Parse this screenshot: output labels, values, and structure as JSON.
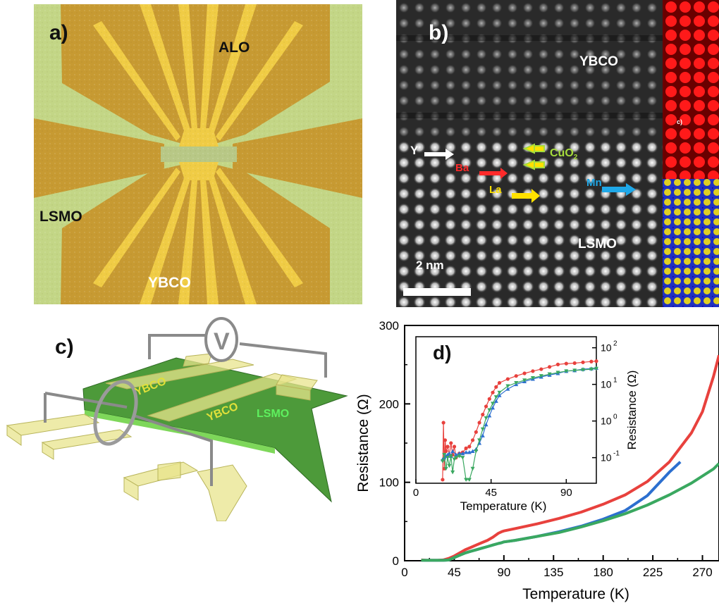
{
  "panel_a": {
    "label": "a)",
    "materials": {
      "top": "ALO",
      "left": "LSMO",
      "bottom": "YBCO"
    },
    "colors": {
      "substrate": "#c3d686",
      "gold": "#c79a32",
      "ybco": "#f0cc45",
      "frame": "#a9bf78"
    }
  },
  "panel_b": {
    "label": "b)",
    "layer_top": "YBCO",
    "layer_bottom": "LSMO",
    "atoms": {
      "y": "Y",
      "ba": "Ba",
      "la": "La",
      "mn": "Mn",
      "cuo2": "CuO",
      "cuo2_sub": "2"
    },
    "scale_bar": "2 nm",
    "eds_label": "c)",
    "colors": {
      "y": "#ffffff",
      "ba": "#ff2a2a",
      "la": "#ffe100",
      "mn": "#1fa8e8",
      "cuo2": "#a6dc3c"
    }
  },
  "panel_c": {
    "label": "c)",
    "labels": {
      "ybco_left": "YBCO",
      "ybco_right": "YBCO",
      "lsmo": "LSMO",
      "voltmeter": "V"
    },
    "colors": {
      "lsmo": "#4d9a3a",
      "ybco": "#e8e48c",
      "label_ybco": "#e0e03a",
      "label_lsmo": "#5ef05e"
    }
  },
  "panel_d": {
    "label": "d)",
    "chart_data": [
      {
        "type": "line",
        "xlabel": "Temperature (K)",
        "ylabel": "Resistance (Ω)",
        "xlim": [
          0,
          285
        ],
        "ylim": [
          0,
          300
        ],
        "xticks": [
          0,
          45,
          90,
          135,
          180,
          225,
          270
        ],
        "yticks": [
          0,
          100,
          200,
          300
        ],
        "series": [
          {
            "color": "#e8413d",
            "x": [
              15,
              20,
              25,
              30,
              35,
              40,
              45,
              50,
              55,
              60,
              65,
              70,
              75,
              80,
              85,
              88,
              90,
              100,
              120,
              140,
              160,
              180,
              200,
              220,
              240,
              260,
              270,
              280,
              285
            ],
            "y": [
              1,
              0.5,
              0.5,
              0.5,
              1,
              3,
              6,
              10,
              14,
              17,
              20,
              23,
              26,
              30,
              35,
              37,
              38,
              41,
              47,
              54,
              62,
              72,
              84,
              101,
              126,
              163,
              190,
              235,
              262
            ]
          },
          {
            "color": "#2c6fcf",
            "x": [
              15,
              20,
              30,
              35,
              40,
              45,
              50,
              55,
              60,
              65,
              70,
              75,
              80,
              85,
              88,
              90,
              100,
              120,
              140,
              160,
              180,
              200,
              220,
              240,
              250
            ],
            "y": [
              0.5,
              0.5,
              0.5,
              0.5,
              1,
              4,
              7,
              10,
              12,
              14,
              16,
              18,
              20,
              22,
              23,
              24,
              26,
              31,
              37,
              44,
              53,
              64,
              83,
              113,
              126
            ]
          },
          {
            "color": "#3aa860",
            "x": [
              15,
              20,
              30,
              35,
              40,
              45,
              50,
              55,
              60,
              65,
              70,
              75,
              80,
              85,
              88,
              90,
              100,
              120,
              140,
              160,
              180,
              200,
              220,
              240,
              260,
              280,
              285
            ],
            "y": [
              0.5,
              0.5,
              0.5,
              0.5,
              1,
              4,
              7,
              10,
              12,
              14,
              16,
              18,
              20,
              22,
              23,
              24,
              26,
              31,
              36,
              43,
              51,
              60,
              71,
              84,
              99,
              117,
              124
            ]
          }
        ]
      },
      {
        "type": "scatter",
        "xlabel": "Temperature (K)",
        "ylabel": "Resistance (Ω)",
        "yscale": "log",
        "xlim": [
          0,
          108
        ],
        "ylim": [
          0.02,
          200
        ],
        "xticks": [
          0,
          45,
          90
        ],
        "yticks": [
          0.1,
          1,
          10,
          100
        ],
        "ytick_labels": [
          "10",
          "10",
          "10",
          "10"
        ],
        "ytick_exponents": [
          "-1",
          "0",
          "1",
          "2"
        ],
        "series": [
          {
            "color": "#e8413d",
            "x": [
              16,
              16.5,
              17,
              17.5,
              18,
              19,
              20,
              21,
              22,
              23,
              24,
              26,
              28,
              30,
              32,
              34,
              36,
              38,
              40,
              42,
              44,
              46,
              48,
              50,
              55,
              60,
              65,
              70,
              75,
              80,
              85,
              90,
              95,
              100,
              105,
              108
            ],
            "y": [
              0.025,
              0.9,
              0.05,
              0.3,
              0.15,
              0.2,
              0.12,
              0.25,
              0.12,
              0.2,
              0.1,
              0.13,
              0.14,
              0.18,
              0.2,
              0.3,
              0.5,
              0.9,
              1.5,
              2.5,
              4,
              6,
              8.5,
              11,
              14,
              17,
              20,
              23,
              26,
              30,
              35,
              37,
              38,
              40,
              42,
              43
            ]
          },
          {
            "color": "#2c6fcf",
            "x": [
              16,
              17,
              18,
              19,
              20,
              21,
              22,
              24,
              26,
              28,
              30,
              32,
              34,
              36,
              38,
              40,
              42,
              44,
              46,
              48,
              50,
              55,
              60,
              65,
              70,
              75,
              80,
              85,
              90,
              95,
              100,
              105,
              108
            ],
            "y": [
              0.09,
              0.1,
              0.11,
              0.12,
              0.13,
              0.11,
              0.15,
              0.12,
              0.13,
              0.13,
              0.14,
              0.14,
              0.15,
              0.17,
              0.25,
              0.4,
              0.8,
              1.4,
              2.3,
              3.5,
              5,
              7.5,
              10,
              12,
              14,
              16,
              18,
              20,
              23,
              24,
              26,
              27,
              28
            ]
          },
          {
            "color": "#3aa860",
            "x": [
              16,
              17,
              18,
              19,
              20,
              21,
              22,
              23,
              24,
              26,
              28,
              30,
              32,
              34,
              36,
              38,
              40,
              42,
              44,
              46,
              48,
              50,
              55,
              60,
              65,
              70,
              75,
              80,
              85,
              90,
              95,
              100,
              105,
              108
            ],
            "y": [
              0.08,
              0.12,
              0.05,
              0.1,
              0.06,
              0.11,
              0.04,
              0.09,
              0.1,
              0.11,
              0.1,
              0.025,
              0.025,
              0.05,
              0.15,
              0.3,
              0.6,
              1.2,
              2,
              3,
              4.5,
              6,
              9,
              11,
              13,
              15,
              17,
              19,
              21,
              23,
              24,
              25,
              26,
              27
            ]
          }
        ]
      }
    ]
  }
}
